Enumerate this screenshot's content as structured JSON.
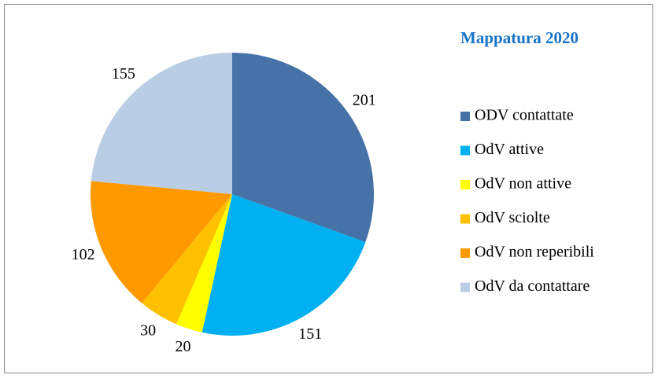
{
  "chart_data": {
    "type": "pie",
    "title": "Mappatura 2020",
    "categories": [
      "ODV contattate",
      "OdV attive",
      "OdV non attive",
      "OdV sciolte",
      "OdV non reperibili",
      "OdV da contattare"
    ],
    "values": [
      201,
      151,
      20,
      30,
      102,
      155
    ],
    "colors": [
      "#4672a8",
      "#00b0f0",
      "#ffff00",
      "#ffc000",
      "#ff9900",
      "#b9cde5"
    ],
    "legend": "right"
  }
}
